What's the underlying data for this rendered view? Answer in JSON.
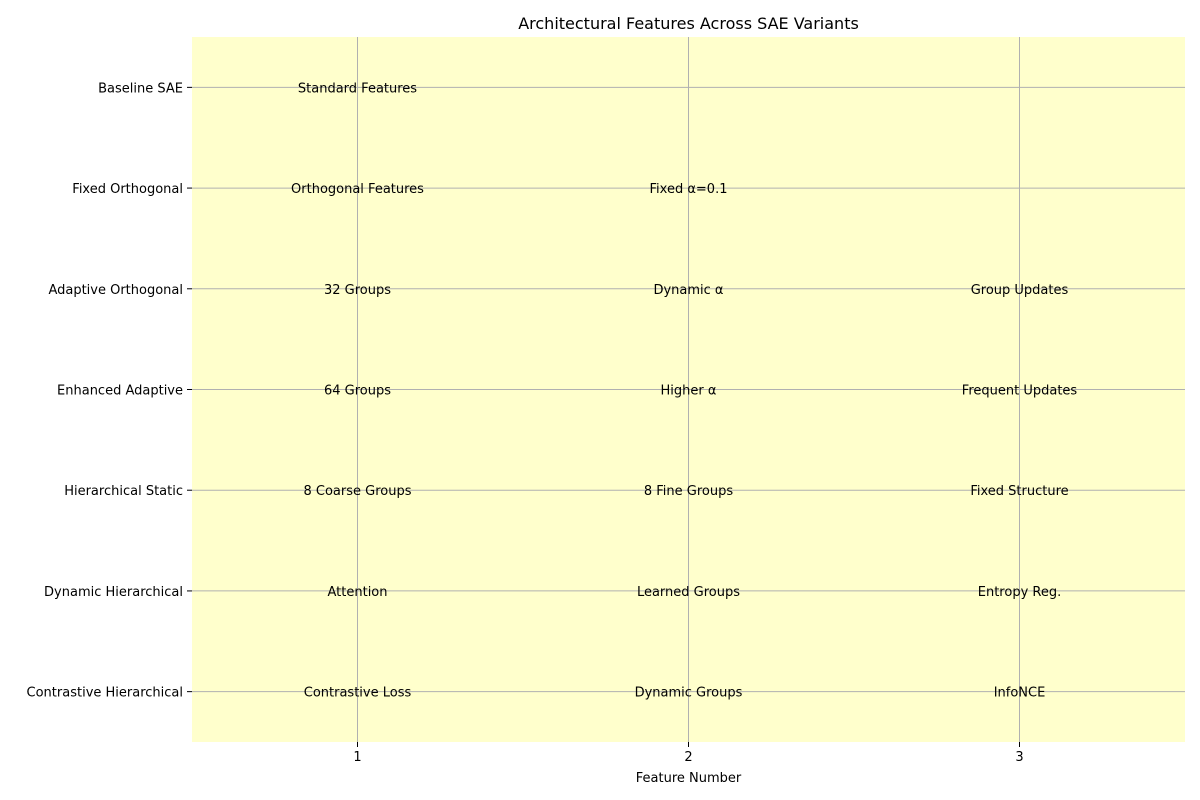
{
  "chart_data": {
    "type": "table",
    "title": "Architectural Features Across SAE Variants",
    "xlabel": "Feature Number",
    "ylabel": "",
    "x_ticks": [
      "1",
      "2",
      "3"
    ],
    "rows": [
      {
        "name": "Baseline SAE",
        "cells": [
          "Standard Features",
          "",
          ""
        ]
      },
      {
        "name": "Fixed Orthogonal",
        "cells": [
          "Orthogonal Features",
          "Fixed α=0.1",
          ""
        ]
      },
      {
        "name": "Adaptive Orthogonal",
        "cells": [
          "32 Groups",
          "Dynamic α",
          "Group Updates"
        ]
      },
      {
        "name": "Enhanced Adaptive",
        "cells": [
          "64 Groups",
          "Higher α",
          "Frequent Updates"
        ]
      },
      {
        "name": "Hierarchical Static",
        "cells": [
          "8 Coarse Groups",
          "8 Fine Groups",
          "Fixed Structure"
        ]
      },
      {
        "name": "Dynamic Hierarchical",
        "cells": [
          "Attention",
          "Learned Groups",
          "Entropy Reg."
        ]
      },
      {
        "name": "Contrastive Hierarchical",
        "cells": [
          "Contrastive Loss",
          "Dynamic Groups",
          "InfoNCE"
        ]
      }
    ],
    "grid": true,
    "legend": "none",
    "colors": {
      "background": "#ffffcc",
      "grid": "#b0b0b0",
      "text": "#000000"
    }
  }
}
